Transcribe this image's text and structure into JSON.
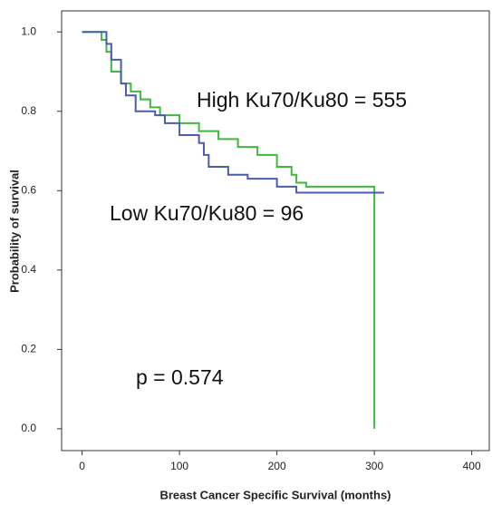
{
  "chart_data": {
    "type": "step",
    "x_label": "Breast Cancer Specific Survival (months)",
    "y_label": "Probability of survival",
    "annotations": [
      "High Ku70/Ku80 = 555",
      "Low Ku70/Ku80 = 96",
      "p = 0.574"
    ],
    "xlim": [
      -21,
      418
    ],
    "ylim": [
      -0.055,
      1.053
    ],
    "xticks": [
      0,
      100,
      200,
      300,
      400
    ],
    "yticks": [
      {
        "value": 0,
        "label": "0.0"
      },
      0.2,
      0.4,
      0.6,
      0.8,
      {
        "value": 1,
        "label": "1.0"
      }
    ],
    "series": [
      {
        "color": "#3fb83f",
        "x": [
          0,
          20,
          25,
          30,
          40,
          50,
          60,
          70,
          80,
          100,
          120,
          140,
          160,
          180,
          200,
          215,
          220,
          230,
          300,
          300
        ],
        "values": [
          1,
          0.98,
          0.95,
          0.9,
          0.87,
          0.85,
          0.83,
          0.81,
          0.79,
          0.77,
          0.75,
          0.73,
          0.71,
          0.69,
          0.66,
          0.64,
          0.62,
          0.61,
          0.61,
          0
        ]
      },
      {
        "color": "#4a5cb0",
        "x": [
          0,
          20,
          25,
          30,
          40,
          45,
          55,
          75,
          85,
          100,
          120,
          125,
          130,
          150,
          170,
          200,
          220,
          310
        ],
        "values": [
          1,
          1,
          0.97,
          0.93,
          0.87,
          0.84,
          0.8,
          0.79,
          0.77,
          0.74,
          0.72,
          0.69,
          0.66,
          0.64,
          0.63,
          0.61,
          0.595,
          0.595
        ]
      }
    ]
  }
}
